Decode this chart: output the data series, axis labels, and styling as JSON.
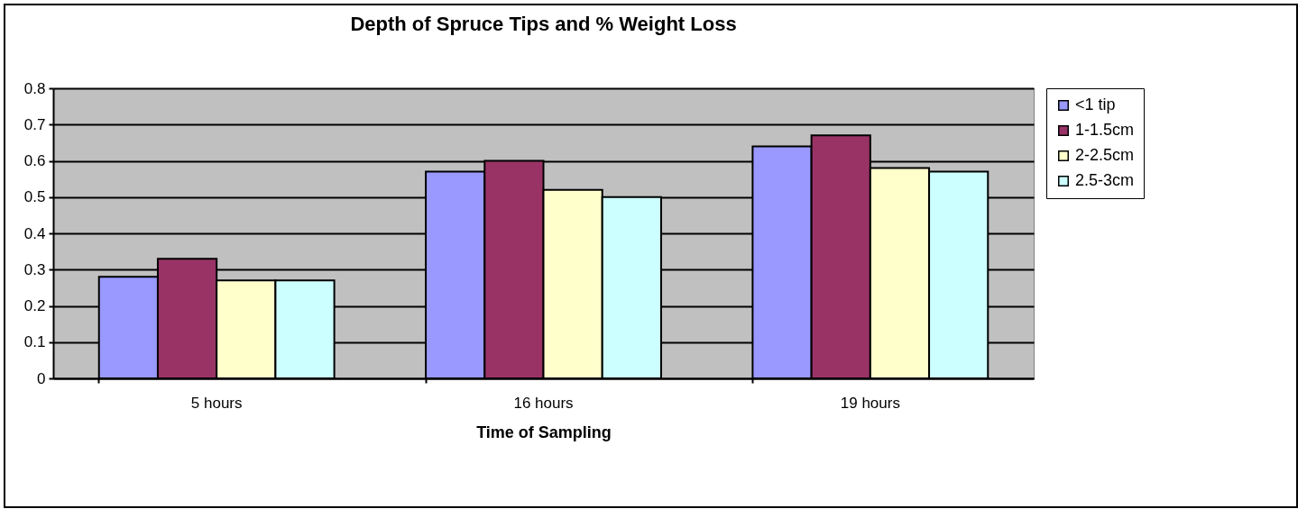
{
  "chart_data": {
    "type": "bar",
    "title": "Depth of Spruce Tips and % Weight Loss",
    "xlabel": "Time of Sampling",
    "categories": [
      "5 hours",
      "16 hours",
      "19 hours"
    ],
    "series": [
      {
        "name": "<1 tip",
        "color": "#9999ff",
        "values": [
          0.28,
          0.57,
          0.64
        ]
      },
      {
        "name": "1-1.5cm",
        "color": "#993366",
        "values": [
          0.33,
          0.6,
          0.67
        ]
      },
      {
        "name": "2-2.5cm",
        "color": "#ffffcc",
        "values": [
          0.27,
          0.52,
          0.58
        ]
      },
      {
        "name": "2.5-3cm",
        "color": "#ccffff",
        "values": [
          0.27,
          0.5,
          0.57
        ]
      }
    ],
    "ylim": [
      0,
      0.8
    ],
    "yticks": [
      0,
      0.1,
      0.2,
      0.3,
      0.4,
      0.5,
      0.6,
      0.7,
      0.8
    ],
    "grid": "y",
    "legend": "right"
  }
}
